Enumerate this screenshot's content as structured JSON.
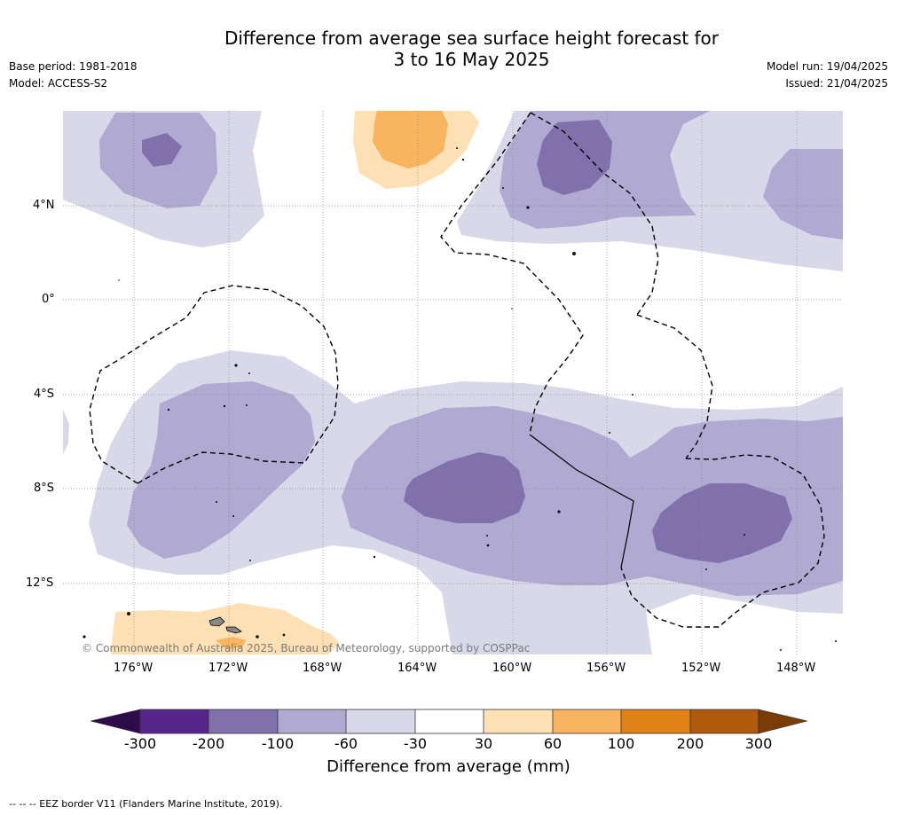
{
  "title_line1": "Difference from average sea surface height forecast for",
  "title_line2": "3 to 16 May 2025",
  "base_period": "Base period: 1981-2018",
  "model": "Model: ACCESS-S2",
  "model_run": "Model run: 19/04/2025",
  "issued": "Issued: 21/04/2025",
  "lat_labels": [
    "4°N",
    "0°",
    "4°S",
    "8°S",
    "12°S"
  ],
  "lon_labels": [
    "176°W",
    "172°W",
    "168°W",
    "164°W",
    "160°W",
    "156°W",
    "152°W",
    "148°W"
  ],
  "copyright": "© Commonwealth of Australia 2025, Bureau of Meteorology, supported by COSPPac",
  "colorbar": {
    "ticks": [
      "-300",
      "-200",
      "-100",
      "-60",
      "-30",
      "30",
      "60",
      "100",
      "200",
      "300"
    ],
    "colors": [
      "#56258a",
      "#8070ab",
      "#b0a9d1",
      "#d8d8e9",
      "#ffffff",
      "#fde0b4",
      "#f8b45f",
      "#e08216",
      "#b05a0b"
    ],
    "under_color": "#2e0c4a",
    "over_color": "#7a3c07",
    "label": "Difference from average (mm)"
  },
  "footnote": "--  --  -- EEZ border V11 (Flanders Marine Institute, 2019)."
}
